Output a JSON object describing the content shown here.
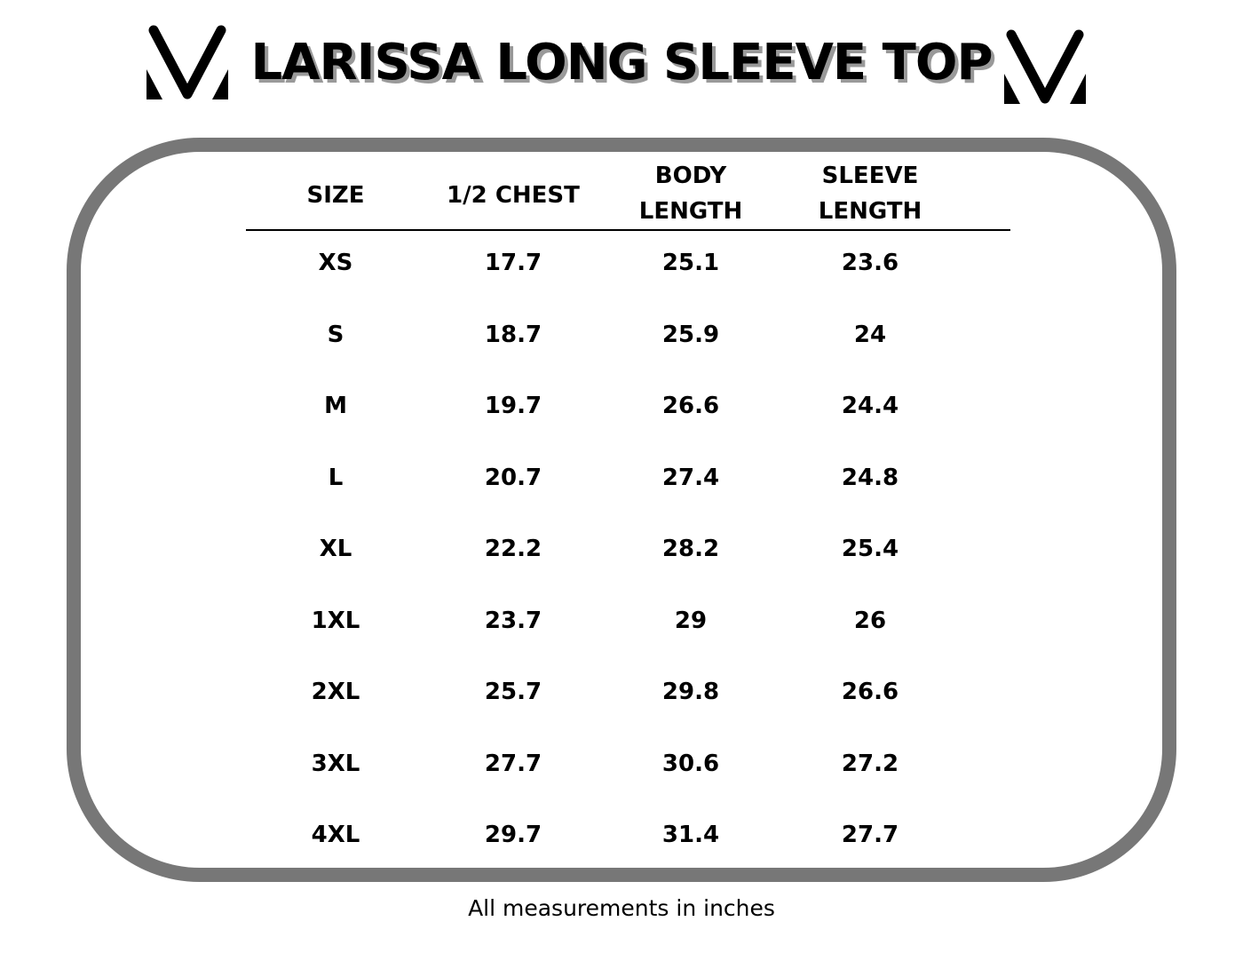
{
  "title": "LARISSA LONG SLEEVE TOP",
  "header_lines": [
    [
      "SIZE"
    ],
    [
      "1/2 CHEST"
    ],
    [
      "BODY",
      "LENGTH"
    ],
    [
      "SLEEVE",
      "LENGTH"
    ]
  ],
  "rows": [
    [
      "XS",
      "17.7",
      "25.1",
      "23.6"
    ],
    [
      "S",
      "18.7",
      "25.9",
      "24"
    ],
    [
      "M",
      "19.7",
      "26.6",
      "24.4"
    ],
    [
      "L",
      "20.7",
      "27.4",
      "24.8"
    ],
    [
      "XL",
      "22.2",
      "28.2",
      "25.4"
    ],
    [
      "1XL",
      "23.7",
      "29",
      "26"
    ],
    [
      "2XL",
      "25.7",
      "29.8",
      "26.6"
    ],
    [
      "3XL",
      "27.7",
      "30.6",
      "27.2"
    ],
    [
      "4XL",
      "29.7",
      "31.4",
      "27.7"
    ]
  ],
  "footnote": "All measurements in inches",
  "colors": {
    "border": "#777777",
    "shadow": "#999999"
  }
}
